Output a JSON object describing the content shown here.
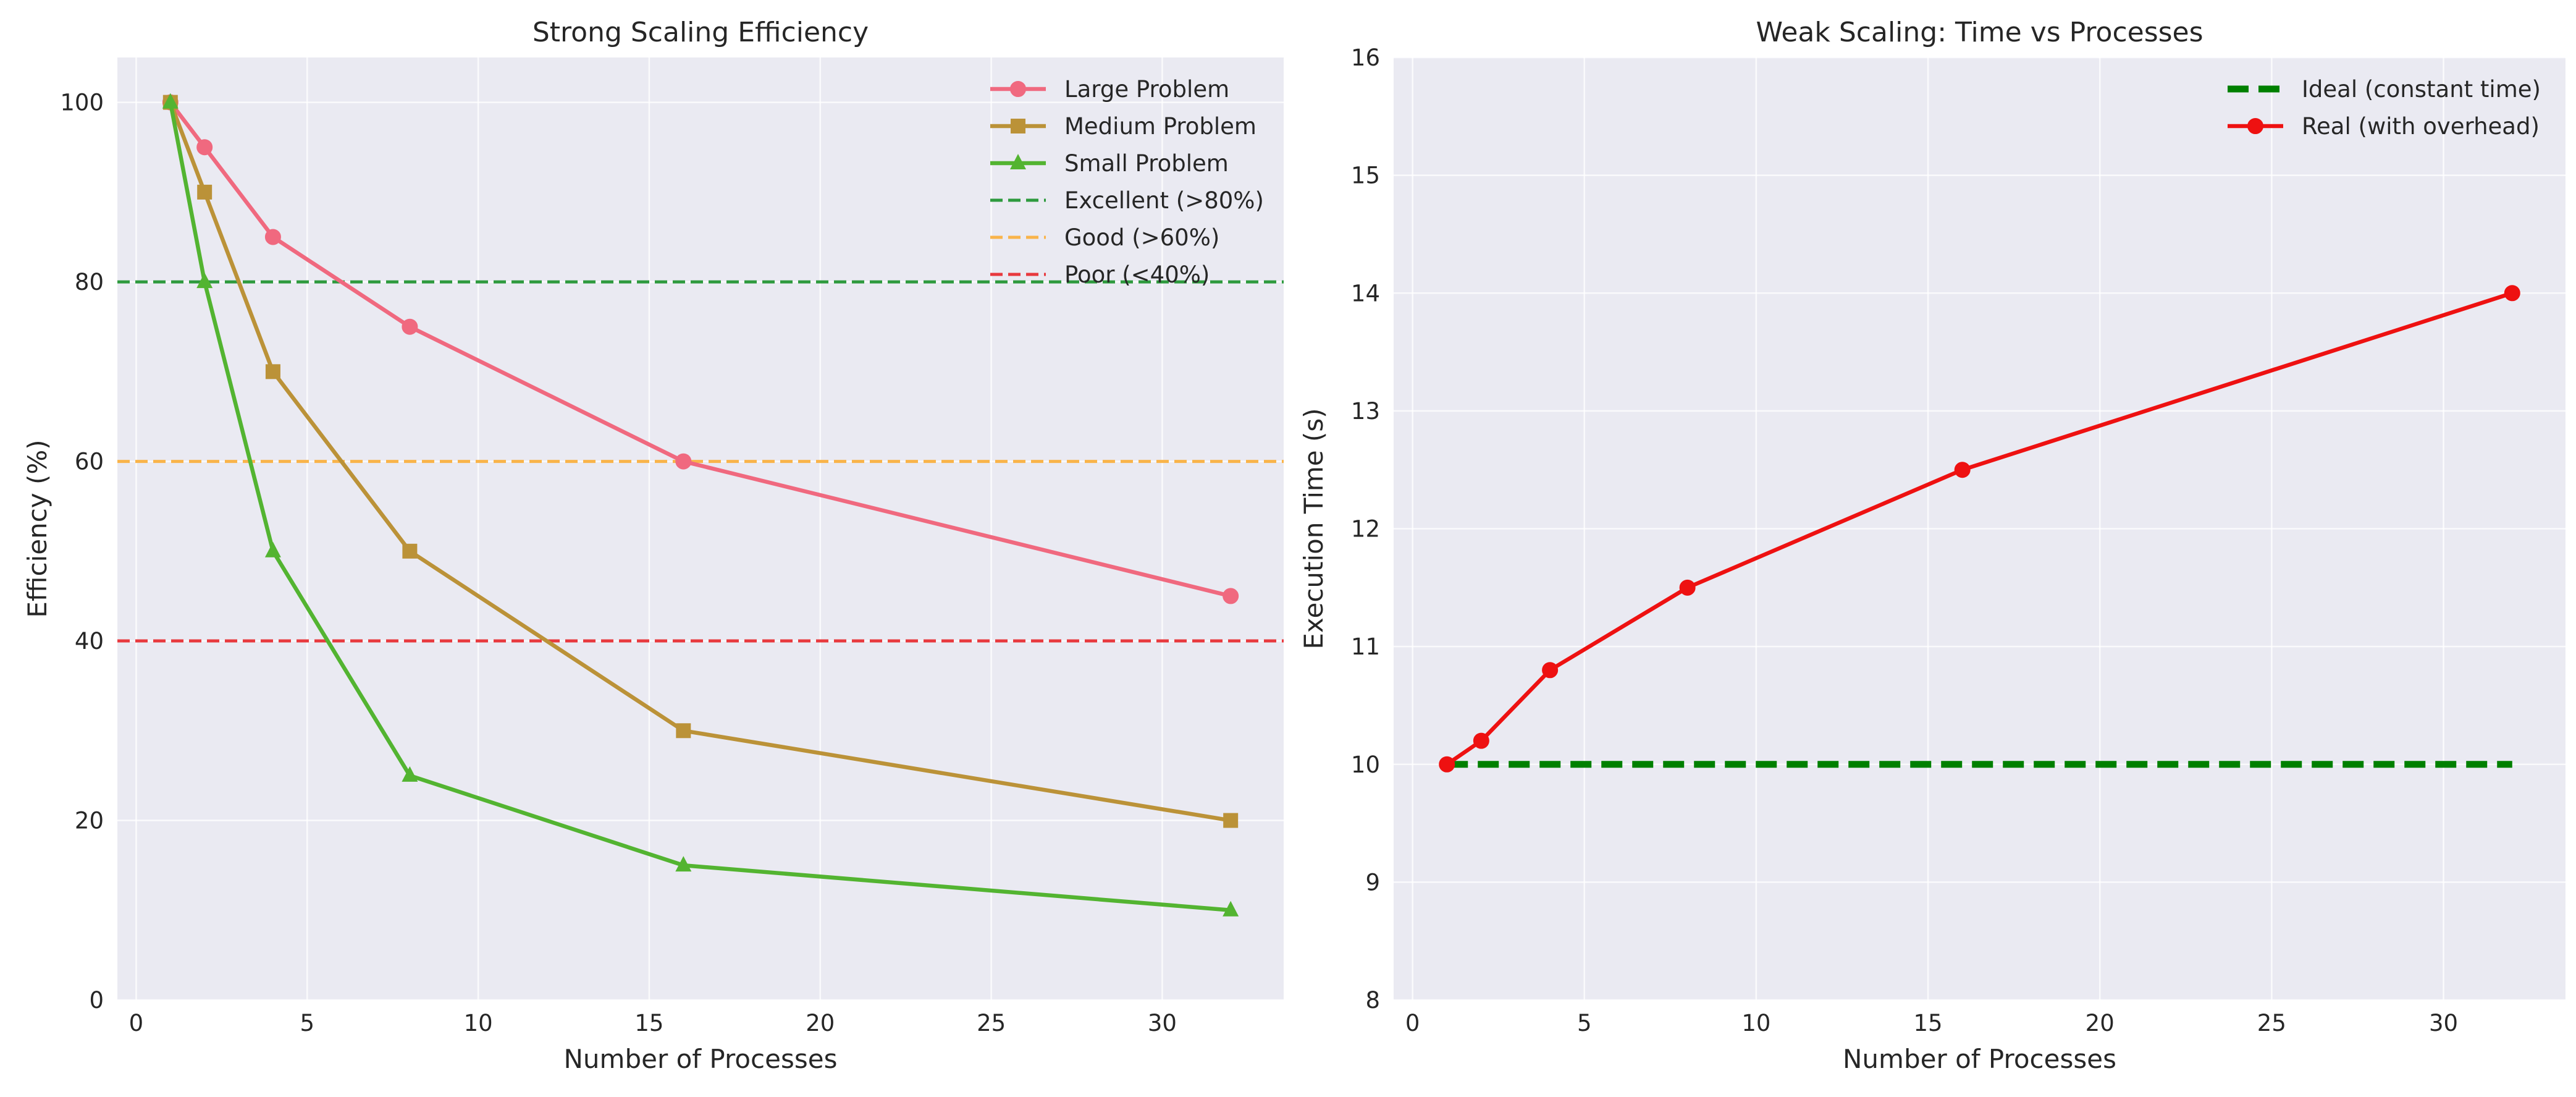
{
  "chart_data": [
    {
      "type": "line",
      "title": "Strong Scaling Efficiency",
      "xlabel": "Number of Processes",
      "ylabel": "Efficiency (%)",
      "xlim": [
        -0.55,
        33.55
      ],
      "ylim": [
        0,
        105
      ],
      "xticks": [
        0,
        5,
        10,
        15,
        20,
        25,
        30
      ],
      "yticks": [
        0,
        20,
        40,
        60,
        80,
        100
      ],
      "grid": true,
      "legend_position": "top-right",
      "x": [
        1,
        2,
        4,
        8,
        16,
        32
      ],
      "series": [
        {
          "name": "Large Problem",
          "values": [
            100,
            95,
            85,
            75,
            60,
            45
          ],
          "color": "#f0697f",
          "marker": "circle"
        },
        {
          "name": "Medium Problem",
          "values": [
            100,
            90,
            70,
            50,
            30,
            20
          ],
          "color": "#bb9238",
          "marker": "square"
        },
        {
          "name": "Small Problem",
          "values": [
            100,
            80,
            50,
            25,
            15,
            10
          ],
          "color": "#53b431",
          "marker": "triangle"
        }
      ],
      "reference_lines": [
        {
          "name": "Excellent (>80%)",
          "y": 80,
          "color": "#2e9a3e"
        },
        {
          "name": "Good (>60%)",
          "y": 60,
          "color": "#f9b44a"
        },
        {
          "name": "Poor (<40%)",
          "y": 40,
          "color": "#e8393e"
        }
      ]
    },
    {
      "type": "line",
      "title": "Weak Scaling: Time vs Processes",
      "xlabel": "Number of Processes",
      "ylabel": "Execution Time (s)",
      "xlim": [
        -0.55,
        33.55
      ],
      "ylim": [
        8,
        16
      ],
      "xticks": [
        0,
        5,
        10,
        15,
        20,
        25,
        30
      ],
      "yticks": [
        8,
        9,
        10,
        11,
        12,
        13,
        14,
        15,
        16
      ],
      "grid": true,
      "legend_position": "top-right",
      "x": [
        1,
        2,
        4,
        8,
        16,
        32
      ],
      "series": [
        {
          "name": "Ideal (constant time)",
          "values": [
            10,
            10,
            10,
            10,
            10,
            10
          ],
          "color": "#008000",
          "style": "dashed",
          "marker": "none"
        },
        {
          "name": "Real (with overhead)",
          "values": [
            10,
            10.2,
            10.8,
            11.5,
            12.5,
            14
          ],
          "color": "#ee1111",
          "style": "solid",
          "marker": "circle"
        }
      ]
    }
  ]
}
